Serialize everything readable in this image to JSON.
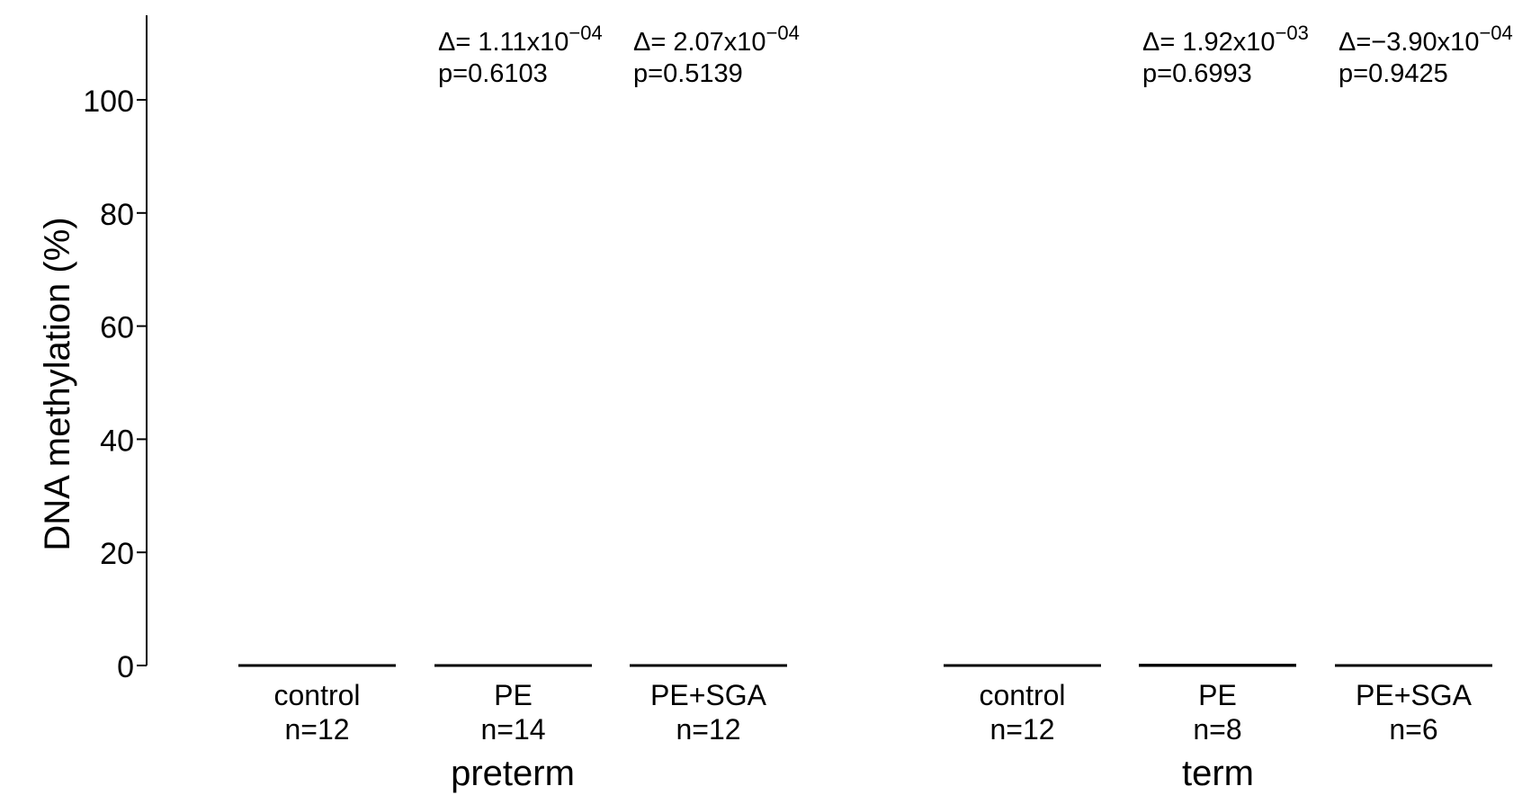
{
  "chart_data": {
    "type": "bar",
    "title": "",
    "ylabel": "DNA methylation (%)",
    "xlabel": "",
    "ylim": [
      0,
      115
    ],
    "yticks": [
      "0",
      "20",
      "40",
      "60",
      "80",
      "100"
    ],
    "grid": false,
    "groups": [
      {
        "label": "preterm",
        "bars": [
          {
            "category": "control",
            "n": "n=12",
            "value": 0.05,
            "delta": "",
            "delta_exp": "",
            "p": ""
          },
          {
            "category": "PE",
            "n": "n=14",
            "value": 0.05,
            "delta": "Δ= 1.11x10",
            "delta_exp": "−04",
            "p": "p=0.6103"
          },
          {
            "category": "PE+SGA",
            "n": "n=12",
            "value": 0.05,
            "delta": "Δ= 2.07x10",
            "delta_exp": "−04",
            "p": "p=0.5139"
          }
        ]
      },
      {
        "label": "term",
        "bars": [
          {
            "category": "control",
            "n": "n=12",
            "value": 0.05,
            "delta": "",
            "delta_exp": "",
            "p": ""
          },
          {
            "category": "PE",
            "n": "n=8",
            "value": 0.3,
            "delta": "Δ= 1.92x10",
            "delta_exp": "−03",
            "p": "p=0.6993"
          },
          {
            "category": "PE+SGA",
            "n": "n=6",
            "value": 0.05,
            "delta": "Δ=−3.90x10",
            "delta_exp": "−04",
            "p": "p=0.9425"
          }
        ]
      }
    ]
  }
}
